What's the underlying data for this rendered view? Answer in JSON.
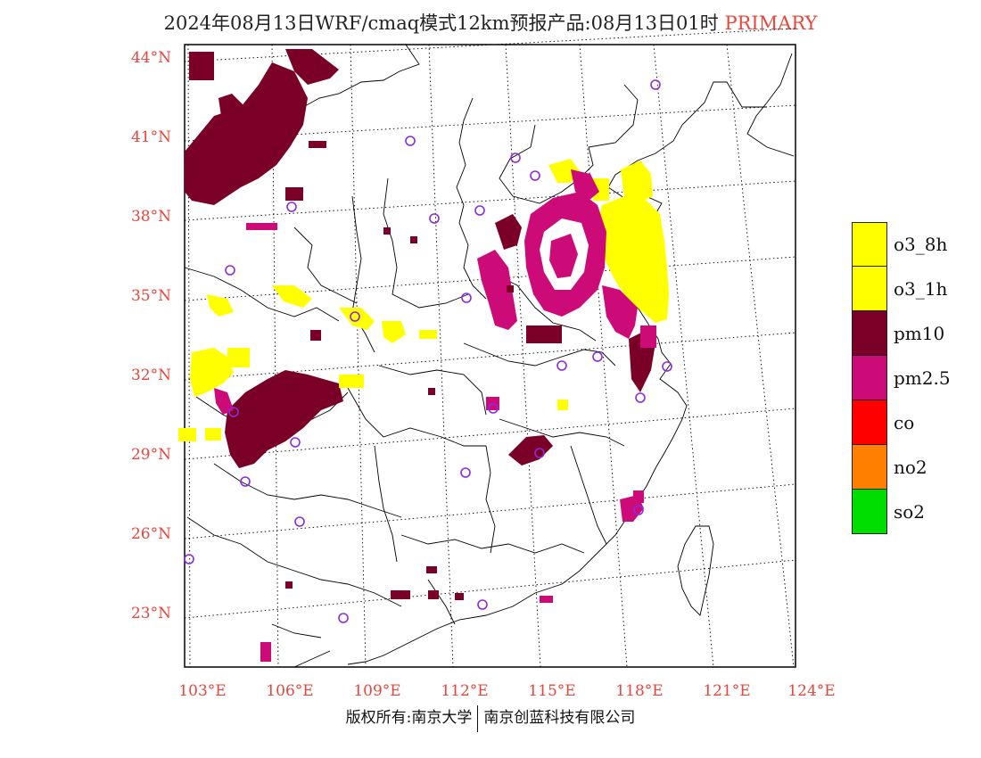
{
  "header": {
    "title": "2024年08月13日WRF/cmaq模式12km预报产品:08月13日01时",
    "tag": "PRIMARY"
  },
  "colors": {
    "axis_label": "#e8463c",
    "o3_8h": "#ffff00",
    "o3_1h": "#ffff00",
    "pm10": "#7b0028",
    "pm2_5": "#cc0a78",
    "co": "#ff0000",
    "no2": "#ff7f00",
    "so2": "#00dd00",
    "station": "#8a2be2"
  },
  "lat_ticks": [
    "44°N",
    "41°N",
    "38°N",
    "35°N",
    "32°N",
    "29°N",
    "26°N",
    "23°N"
  ],
  "lon_ticks": [
    "103°E",
    "106°E",
    "109°E",
    "112°E",
    "115°E",
    "118°E",
    "121°E",
    "124°E"
  ],
  "legend": [
    {
      "label": "o3_8h",
      "color": "#ffff00"
    },
    {
      "label": "o3_1h",
      "color": "#ffff00"
    },
    {
      "label": "pm10",
      "color": "#7b0028"
    },
    {
      "label": "pm2.5",
      "color": "#cc0a78"
    },
    {
      "label": "co",
      "color": "#ff0000"
    },
    {
      "label": "no2",
      "color": "#ff7f00"
    },
    {
      "label": "so2",
      "color": "#00dd00"
    }
  ],
  "footer": {
    "left": "版权所有:南京大学",
    "right": "南京创蓝科技有限公司"
  }
}
